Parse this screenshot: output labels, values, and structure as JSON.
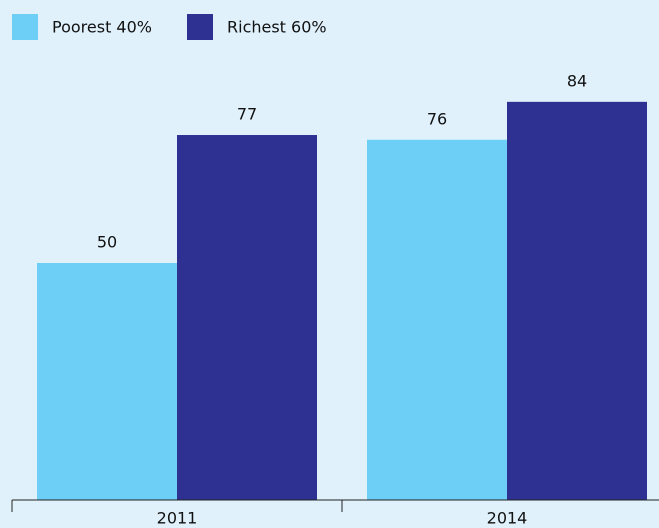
{
  "chart_data": {
    "type": "bar",
    "categories": [
      "2011",
      "2014"
    ],
    "series": [
      {
        "name": "Poorest 40%",
        "color": "#6dcff6",
        "values": [
          50,
          76
        ]
      },
      {
        "name": "Richest 60%",
        "color": "#2e3192",
        "values": [
          77,
          84
        ]
      }
    ],
    "ylim": [
      0,
      100
    ],
    "legend": "top-left"
  }
}
